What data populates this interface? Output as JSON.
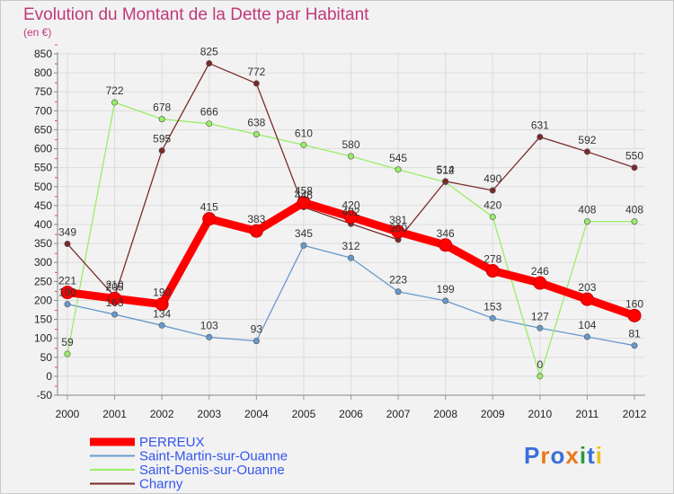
{
  "chart_data": {
    "type": "line",
    "title": "Evolution du Montant de la Dette par Habitant",
    "subtitle": "(en €)",
    "categories": [
      "2000",
      "2001",
      "2002",
      "2003",
      "2004",
      "2005",
      "2006",
      "2007",
      "2008",
      "2009",
      "2010",
      "2011",
      "2012"
    ],
    "ylim": [
      -50,
      850
    ],
    "yticks": [
      -50,
      0,
      50,
      100,
      150,
      200,
      250,
      300,
      350,
      400,
      450,
      500,
      550,
      600,
      650,
      700,
      750,
      800,
      850
    ],
    "grid": true,
    "legend_position": "bottom-left",
    "series": [
      {
        "name": "PERREUX",
        "color": "#ff0000",
        "values": [
          221,
          205,
          190,
          415,
          383,
          458,
          420,
          381,
          346,
          278,
          246,
          203,
          160
        ]
      },
      {
        "name": "Saint-Martin-sur-Ouanne",
        "color": "#6699cc",
        "values": [
          190,
          163,
          134,
          103,
          93,
          345,
          312,
          223,
          199,
          153,
          127,
          104,
          81
        ]
      },
      {
        "name": "Saint-Denis-sur-Ouanne",
        "color": "#99ee66",
        "values": [
          59,
          722,
          678,
          666,
          638,
          610,
          580,
          545,
          512,
          420,
          0,
          408,
          408
        ]
      },
      {
        "name": "Charny",
        "color": "#7a2a2a",
        "values": [
          349,
          210,
          595,
          825,
          772,
          446,
          402,
          360,
          514,
          490,
          631,
          592,
          550
        ]
      }
    ]
  },
  "logo": {
    "text": "Proxiti"
  }
}
